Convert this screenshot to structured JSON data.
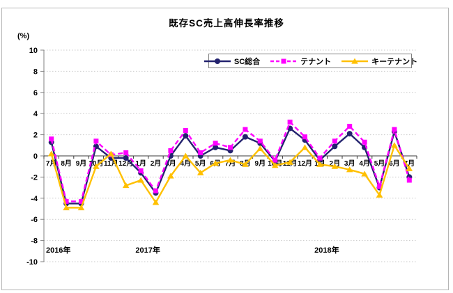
{
  "title": "既存SC売上高伸長率推移",
  "y_unit_label": "(%)",
  "colors": {
    "sc_sogo": "#23226e",
    "tenant": "#ff00ff",
    "key_tenant": "#ffc000",
    "gridline": "#c9c9c9",
    "zero_axis": "#3a3a3a",
    "y_axis": "#808080",
    "frame_border": "#b5b5b5",
    "legend_border": "#7f7f7f"
  },
  "chart_data": {
    "type": "line",
    "title": "既存SC売上高伸長率推移",
    "y_unit": "(%)",
    "categories": [
      "7月",
      "8月",
      "9月",
      "10月",
      "11月",
      "12月",
      "1月",
      "2月",
      "3月",
      "4月",
      "5月",
      "6月",
      "7月",
      "8月",
      "9月",
      "10月",
      "11月",
      "12月",
      "1月",
      "2月",
      "3月",
      "4月",
      "5月",
      "6月",
      "7月"
    ],
    "years": [
      {
        "label": "2016年",
        "month_index": 0
      },
      {
        "label": "2017年",
        "month_index": 6
      },
      {
        "label": "2018年",
        "month_index": 18
      }
    ],
    "series": [
      {
        "name": "SC総合",
        "color": "#23226e",
        "line_style": "solid",
        "marker": "circle",
        "values": [
          1.3,
          -4.5,
          -4.5,
          0.9,
          -0.2,
          -0.2,
          -1.6,
          -3.5,
          0.0,
          1.9,
          0.0,
          0.8,
          0.5,
          1.8,
          1.2,
          -0.5,
          2.6,
          1.5,
          -0.4,
          0.9,
          2.1,
          0.8,
          -3.0,
          2.3,
          -2.0
        ]
      },
      {
        "name": "テナント",
        "color": "#ff00ff",
        "line_style": "dashed",
        "marker": "square",
        "values": [
          1.6,
          -4.3,
          -4.3,
          1.4,
          0.1,
          0.3,
          -1.4,
          -3.3,
          0.5,
          2.4,
          0.3,
          1.2,
          0.8,
          2.5,
          1.4,
          -0.4,
          3.2,
          1.8,
          -0.2,
          1.4,
          2.8,
          1.3,
          -2.9,
          2.5,
          -2.3
        ]
      },
      {
        "name": "キーテナント",
        "color": "#ffc000",
        "line_style": "solid",
        "marker": "triangle",
        "values": [
          0.2,
          -4.9,
          -4.9,
          -1.0,
          0.2,
          -2.8,
          -2.3,
          -4.4,
          -1.9,
          0.0,
          -1.6,
          -0.7,
          -0.4,
          -0.8,
          0.7,
          -0.9,
          -0.6,
          0.8,
          -0.8,
          -1.0,
          -1.3,
          -1.7,
          -3.7,
          1.0,
          -1.2
        ]
      }
    ],
    "ylim": [
      -10,
      10
    ],
    "yticks": [
      10,
      8,
      6,
      4,
      2,
      0,
      -2,
      -4,
      -6,
      -8,
      -10
    ],
    "ytick_step": 2,
    "grid": "horizontal-dotted",
    "legend_position": "top-center"
  }
}
